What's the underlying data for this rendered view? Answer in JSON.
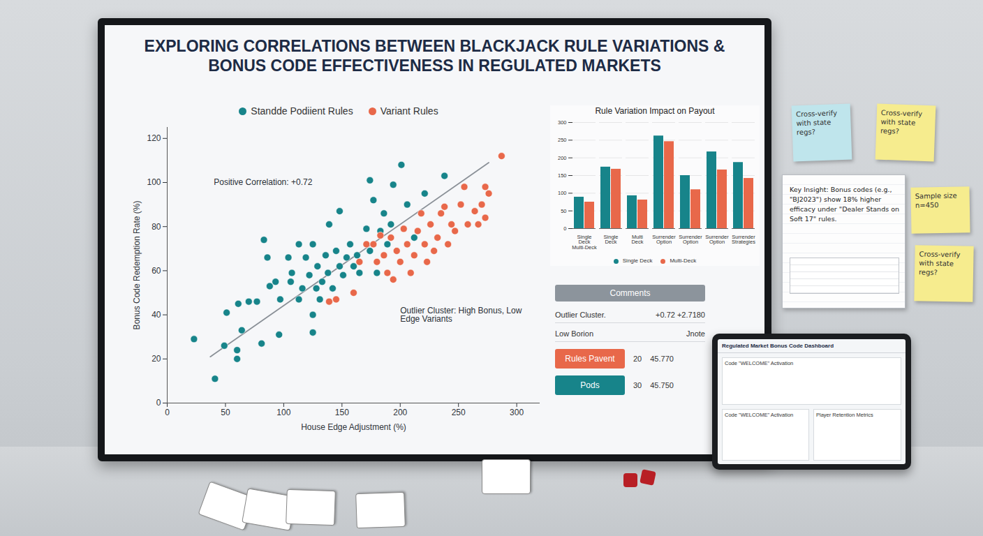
{
  "title": "EXPLORING CORRELATIONS BETWEEN BLACKJACK RULE VARIATIONS & BONUS CODE EFFECTIVENESS IN REGULATED MARKETS",
  "chart_data": [
    {
      "type": "scatter",
      "x_label": "House Edge Adjustment (%)",
      "y_label": "Bonus Code Redemption Rate (%)",
      "xlim": [
        0,
        320
      ],
      "ylim": [
        0,
        125
      ],
      "xticks": [
        0,
        50,
        100,
        150,
        200,
        250,
        300
      ],
      "yticks": [
        0,
        20,
        40,
        60,
        80,
        100,
        120
      ],
      "grid": false,
      "legend": "top",
      "series": [
        {
          "name": "Standde Podiient Rules",
          "color": "#17848a",
          "marker": "circle",
          "x": [
            23,
            41,
            49,
            51,
            60,
            60,
            61,
            70,
            77,
            81,
            64,
            83,
            86,
            88,
            93,
            96,
            97,
            104,
            106,
            107,
            113,
            113,
            116,
            119,
            122,
            125,
            125,
            128,
            129,
            131,
            133,
            136,
            138,
            139,
            142,
            145,
            148,
            148,
            151,
            154,
            157,
            160,
            163,
            165,
            171,
            174,
            177,
            180,
            183,
            186,
            189,
            192,
            194,
            201,
            206,
            212,
            221,
            238,
            174,
            125
          ],
          "y": [
            29,
            11,
            26,
            41,
            24,
            20,
            45,
            46,
            46,
            27,
            33,
            74,
            66,
            53,
            55,
            31,
            47,
            66,
            55,
            59,
            72,
            47,
            52,
            66,
            58,
            40,
            72,
            52,
            62,
            47,
            55,
            67,
            59,
            81,
            52,
            69,
            62,
            87,
            58,
            66,
            72,
            62,
            67,
            59,
            79,
            69,
            92,
            59,
            78,
            86,
            72,
            81,
            99,
            108,
            90,
            75,
            95,
            103,
            101,
            32
          ]
        },
        {
          "name": "Variant Rules",
          "color": "#e8684a",
          "marker": "circle",
          "x": [
            139,
            145,
            160,
            165,
            171,
            177,
            183,
            186,
            189,
            192,
            194,
            197,
            200,
            203,
            206,
            209,
            212,
            215,
            218,
            221,
            223,
            226,
            229,
            232,
            235,
            238,
            241,
            244,
            247,
            252,
            255,
            258,
            264,
            267,
            270,
            273,
            276,
            287,
            273,
            180
          ],
          "y": [
            46,
            47,
            50,
            64,
            72,
            72,
            76,
            67,
            59,
            75,
            56,
            69,
            64,
            79,
            72,
            59,
            67,
            78,
            86,
            72,
            64,
            81,
            69,
            75,
            86,
            89,
            72,
            81,
            78,
            90,
            98,
            81,
            87,
            81,
            90,
            84,
            95,
            112,
            98,
            64
          ]
        }
      ],
      "trendline": {
        "x": [
          37,
          276
        ],
        "y": [
          21,
          109
        ]
      },
      "annotations": [
        {
          "text": "Positive Correlation: +0.72",
          "x": 40,
          "y": 100
        },
        {
          "text": "Outlier Cluster: High Bonus, Low Edge Variants",
          "x": 200,
          "y": 40
        }
      ]
    },
    {
      "type": "bar",
      "title": "Rule Variation Impact on Payout",
      "categories": [
        "Single Deck Multi-Deck",
        "Single Deck",
        "Multi Deck",
        "Surrender Option",
        "Surrender Option",
        "Surrender Option",
        "Surrender Strategies"
      ],
      "ylim": [
        0,
        300
      ],
      "yticks": [
        0,
        50,
        100,
        150,
        200,
        250,
        300
      ],
      "grid": true,
      "legend": "bottom",
      "series": [
        {
          "name": "Single Deck",
          "color": "#17848a",
          "values": [
            89,
            174,
            93,
            262,
            150,
            217,
            187
          ]
        },
        {
          "name": "Multi-Deck",
          "color": "#e8684a",
          "values": [
            75,
            168,
            81,
            246,
            110,
            166,
            142
          ]
        }
      ]
    }
  ],
  "comments": {
    "header": "Comments",
    "rows": [
      {
        "label": "Outlier Cluster.",
        "value": "+0.72 +2.7180"
      },
      {
        "label": "Low Borion",
        "value": "Jnote"
      }
    ],
    "buttons": [
      {
        "label": "Rules Pavent",
        "color": "#e8684a",
        "values": [
          "20",
          "45.770"
        ]
      },
      {
        "label": "Pods",
        "color": "#17848a",
        "values": [
          "30",
          "45.750"
        ]
      }
    ]
  },
  "sticky_notes": [
    "Cross-verify with state regs?",
    "Cross-verify with state regs?",
    "Sample size n=450",
    "Cross-verify with state regs?"
  ],
  "notebook": {
    "text": "Key Insight: Bonus codes (e.g., \"BJ2023\") show 18% higher efficacy under \"Dealer Stands on Soft 17\" rules."
  },
  "tablet": {
    "title": "Regulated Market Bonus Code Dashboard",
    "panels": [
      "Code \"WELCOME\" Activation",
      "Code \"WELCOME\" Activation",
      "Player Retention Metrics"
    ]
  }
}
